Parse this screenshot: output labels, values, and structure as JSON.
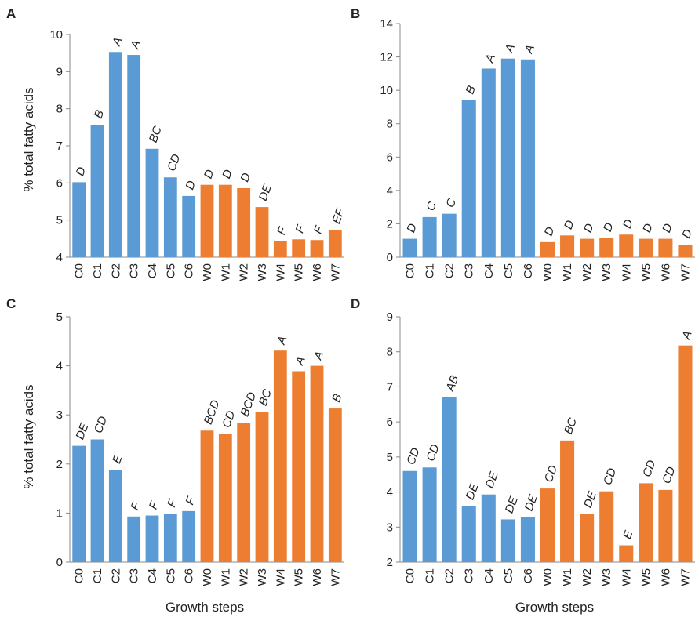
{
  "figure": {
    "ylabel_shared": "% total fatty acids",
    "xlabel_shared": "Growth steps"
  },
  "colors": {
    "C": "#5b9bd5",
    "W": "#ed7d31",
    "axis": "#888888"
  },
  "chart_data": [
    {
      "type": "bar",
      "panel": "A",
      "categories": [
        "C0",
        "C1",
        "C2",
        "C3",
        "C4",
        "C5",
        "C6",
        "W0",
        "W1",
        "W2",
        "W3",
        "W4",
        "W5",
        "W6",
        "W7"
      ],
      "values": [
        6.02,
        7.57,
        9.53,
        9.45,
        6.92,
        6.15,
        5.65,
        5.95,
        5.95,
        5.86,
        5.35,
        4.43,
        4.48,
        4.46,
        4.73
      ],
      "letters": [
        "D",
        "B",
        "A",
        "A",
        "BC",
        "CD",
        "D",
        "D",
        "D",
        "D",
        "DE",
        "F",
        "F",
        "F",
        "EF"
      ],
      "ylim": [
        4,
        10
      ],
      "yticks": [
        4,
        5,
        6,
        7,
        8,
        9,
        10
      ],
      "ylabel": "% total fatty acids",
      "xlabel": "",
      "grid": false
    },
    {
      "type": "bar",
      "panel": "B",
      "categories": [
        "C0",
        "C1",
        "C2",
        "C3",
        "C4",
        "C5",
        "C6",
        "W0",
        "W1",
        "W2",
        "W3",
        "W4",
        "W5",
        "W6",
        "W7"
      ],
      "values": [
        1.1,
        2.4,
        2.6,
        9.4,
        11.3,
        11.9,
        11.85,
        0.9,
        1.3,
        1.1,
        1.15,
        1.35,
        1.1,
        1.1,
        0.75
      ],
      "letters": [
        "D",
        "C",
        "C",
        "B",
        "A",
        "A",
        "A",
        "D",
        "D",
        "D",
        "D",
        "D",
        "D",
        "D",
        "D"
      ],
      "ylim": [
        0,
        14
      ],
      "yticks": [
        0,
        2,
        4,
        6,
        8,
        10,
        12,
        14
      ],
      "ylabel": "",
      "xlabel": "",
      "grid": false
    },
    {
      "type": "bar",
      "panel": "C",
      "categories": [
        "C0",
        "C1",
        "C2",
        "C3",
        "C4",
        "C5",
        "C6",
        "W0",
        "W1",
        "W2",
        "W3",
        "W4",
        "W5",
        "W6",
        "W7"
      ],
      "values": [
        2.37,
        2.5,
        1.88,
        0.93,
        0.95,
        0.99,
        1.04,
        2.68,
        2.61,
        2.84,
        3.06,
        4.31,
        3.89,
        4.0,
        3.13
      ],
      "letters": [
        "DE",
        "CD",
        "E",
        "F",
        "F",
        "F",
        "F",
        "BCD",
        "CD",
        "BCD",
        "BC",
        "A",
        "A",
        "A",
        "B"
      ],
      "ylim": [
        0,
        5
      ],
      "yticks": [
        0,
        1,
        2,
        3,
        4,
        5
      ],
      "ylabel": "% total fatty acids",
      "xlabel": "Growth steps",
      "grid": false
    },
    {
      "type": "bar",
      "panel": "D",
      "categories": [
        "C0",
        "C1",
        "C2",
        "C3",
        "C4",
        "C5",
        "C6",
        "W0",
        "W1",
        "W2",
        "W3",
        "W4",
        "W5",
        "W6",
        "W7"
      ],
      "values": [
        4.6,
        4.7,
        6.7,
        3.6,
        3.93,
        3.22,
        3.28,
        4.1,
        5.47,
        3.37,
        4.02,
        2.48,
        4.25,
        4.06,
        8.18
      ],
      "letters": [
        "CD",
        "CD",
        "AB",
        "DE",
        "DE",
        "DE",
        "DE",
        "CD",
        "BC",
        "DE",
        "CD",
        "E",
        "CD",
        "CD",
        "A"
      ],
      "ylim": [
        2,
        9
      ],
      "yticks": [
        2,
        3,
        4,
        5,
        6,
        7,
        8,
        9
      ],
      "ylabel": "",
      "xlabel": "Growth steps",
      "grid": false
    }
  ]
}
